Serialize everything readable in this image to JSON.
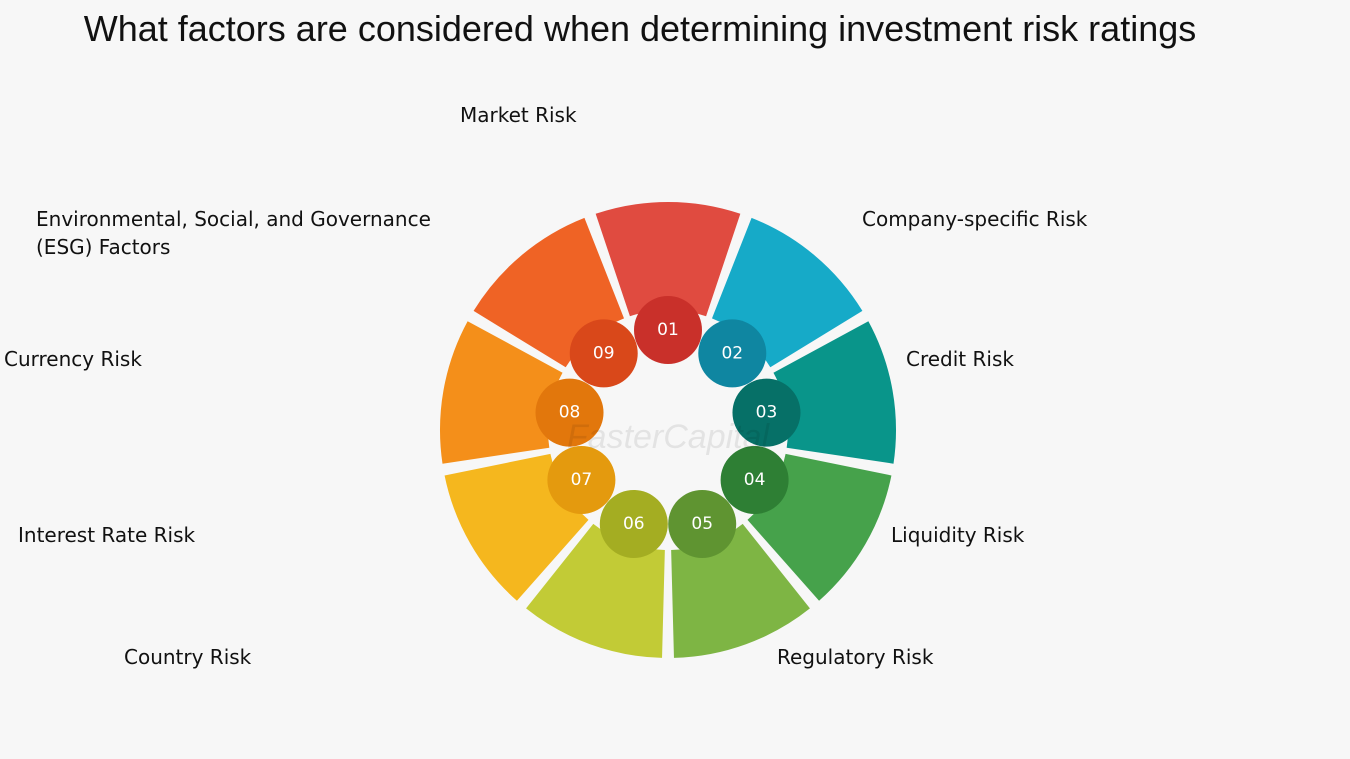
{
  "title": "What factors are considered when determining investment risk ratings",
  "watermark": "FasterCapital",
  "segments": [
    {
      "number": "01",
      "label": "Market Risk"
    },
    {
      "number": "02",
      "label": "Company-specific Risk"
    },
    {
      "number": "03",
      "label": "Credit Risk"
    },
    {
      "number": "04",
      "label": "Liquidity Risk"
    },
    {
      "number": "05",
      "label": "Regulatory Risk"
    },
    {
      "number": "06",
      "label": "Country Risk"
    },
    {
      "number": "07",
      "label": "Interest Rate Risk"
    },
    {
      "number": "08",
      "label": "Currency Risk"
    },
    {
      "number": "09",
      "label": "Environmental, Social, and Governance (ESG) Factors"
    }
  ]
}
